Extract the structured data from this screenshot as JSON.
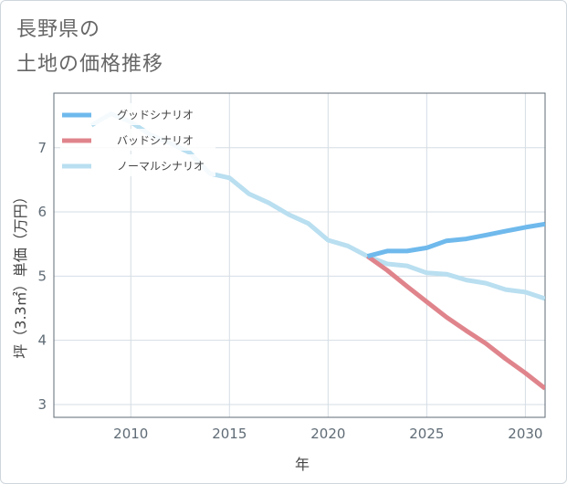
{
  "header": {
    "title_line1": "長野県の",
    "title_line2": "土地の価格推移"
  },
  "chart_data": {
    "type": "line",
    "title": "長野県の土地の価格推移",
    "xlabel": "年",
    "ylabel": "坪（3.3㎡）単価（万円）",
    "xlim": [
      2006.1,
      2031
    ],
    "ylim": [
      2.8,
      7.85
    ],
    "xticks": [
      2010,
      2015,
      2020,
      2025,
      2030
    ],
    "yticks": [
      3,
      4,
      5,
      6,
      7
    ],
    "grid": true,
    "legend_position": "top-left",
    "series": [
      {
        "name": "グッドシナリオ",
        "color": "#6fb9ec",
        "x": [
          2022,
          2023,
          2024,
          2025,
          2026,
          2027,
          2028,
          2029,
          2030,
          2031
        ],
        "y": [
          5.31,
          5.39,
          5.39,
          5.44,
          5.55,
          5.58,
          5.64,
          5.7,
          5.76,
          5.81
        ]
      },
      {
        "name": "バッドシナリオ",
        "color": "#e0848c",
        "x": [
          2022,
          2023,
          2024,
          2025,
          2026,
          2027,
          2028,
          2029,
          2030,
          2031
        ],
        "y": [
          5.31,
          5.09,
          4.84,
          4.6,
          4.36,
          4.15,
          3.95,
          3.71,
          3.49,
          3.25
        ]
      },
      {
        "name": "ノーマルシナリオ",
        "color": "#b9dff0",
        "x": [
          2008,
          2009,
          2010,
          2011,
          2012,
          2013,
          2014,
          2015,
          2016,
          2017,
          2018,
          2019,
          2020,
          2021,
          2022,
          2023,
          2024,
          2025,
          2026,
          2027,
          2028,
          2029,
          2030,
          2031
        ],
        "y": [
          7.35,
          7.53,
          7.4,
          7.2,
          7.07,
          6.92,
          6.6,
          6.53,
          6.28,
          6.14,
          5.96,
          5.82,
          5.56,
          5.47,
          5.31,
          5.19,
          5.16,
          5.05,
          5.03,
          4.94,
          4.89,
          4.79,
          4.75,
          4.65
        ]
      }
    ]
  }
}
